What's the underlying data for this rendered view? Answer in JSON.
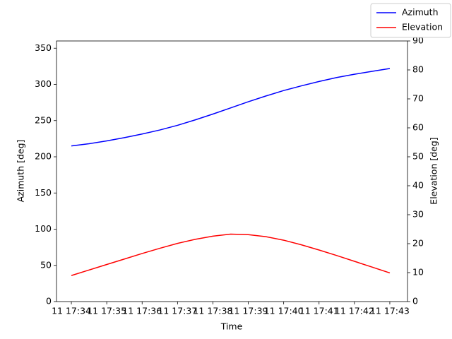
{
  "chart_data": {
    "type": "line",
    "x_label": "Time",
    "y_label": "Azimuth [deg]",
    "y2_label": "Elevation [deg]",
    "x": [
      34,
      34.5,
      35,
      35.5,
      36,
      36.5,
      37,
      37.5,
      38,
      38.5,
      39,
      39.5,
      40,
      40.5,
      41,
      41.5,
      42,
      42.5,
      43
    ],
    "series": [
      {
        "name": "Azimuth",
        "color": "#0000ff",
        "values": [
          215,
          218,
          222,
          226.5,
          231.5,
          237,
          243.5,
          251,
          259,
          267.5,
          276,
          284,
          291.5,
          298,
          304,
          309.5,
          314,
          318,
          322
        ]
      },
      {
        "name": "Elevation",
        "color": "#ff0000",
        "axis": "y2",
        "values": [
          9,
          10.9,
          12.8,
          14.7,
          16.6,
          18.4,
          20.1,
          21.5,
          22.6,
          23.3,
          23.1,
          22.4,
          21.2,
          19.6,
          17.8,
          15.9,
          13.9,
          11.9,
          9.9
        ]
      }
    ],
    "xlim": [
      33.58,
      43.5
    ],
    "xticks": [
      {
        "value": 34,
        "label": "11 17:34"
      },
      {
        "value": 35,
        "label": "11 17:35"
      },
      {
        "value": 36,
        "label": "11 17:36"
      },
      {
        "value": 37,
        "label": "11 17:37"
      },
      {
        "value": 38,
        "label": "11 17:38"
      },
      {
        "value": 39,
        "label": "11 17:39"
      },
      {
        "value": 40,
        "label": "11 17:40"
      },
      {
        "value": 41,
        "label": "11 17:41"
      },
      {
        "value": 42,
        "label": "11 17:42"
      },
      {
        "value": 43,
        "label": "11 17:43"
      }
    ],
    "ylim": [
      0,
      360
    ],
    "yticks": [
      0,
      50,
      100,
      150,
      200,
      250,
      300,
      350
    ],
    "y2lim": [
      0,
      90
    ],
    "y2ticks": [
      0,
      10,
      20,
      30,
      40,
      50,
      60,
      70,
      80,
      90
    ],
    "legend": "upper right"
  }
}
